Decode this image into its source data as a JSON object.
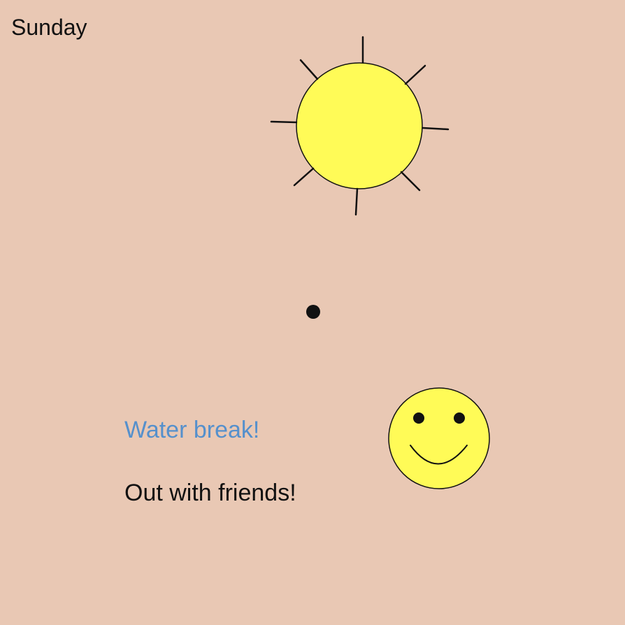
{
  "scene": {
    "day": "Sunday",
    "notes": {
      "water_break": "Water break!",
      "plans": "Out with friends!"
    },
    "icons": {
      "sun": "sun-icon",
      "dot": "dot-icon",
      "smiley": "smiley-face-icon"
    }
  },
  "colors": {
    "background": "#e9c8b4",
    "text": "#111111",
    "accent_text": "#5590cc",
    "sun_fill": "#fffb57",
    "smiley_fill": "#fffb57",
    "outline": "#111111"
  }
}
